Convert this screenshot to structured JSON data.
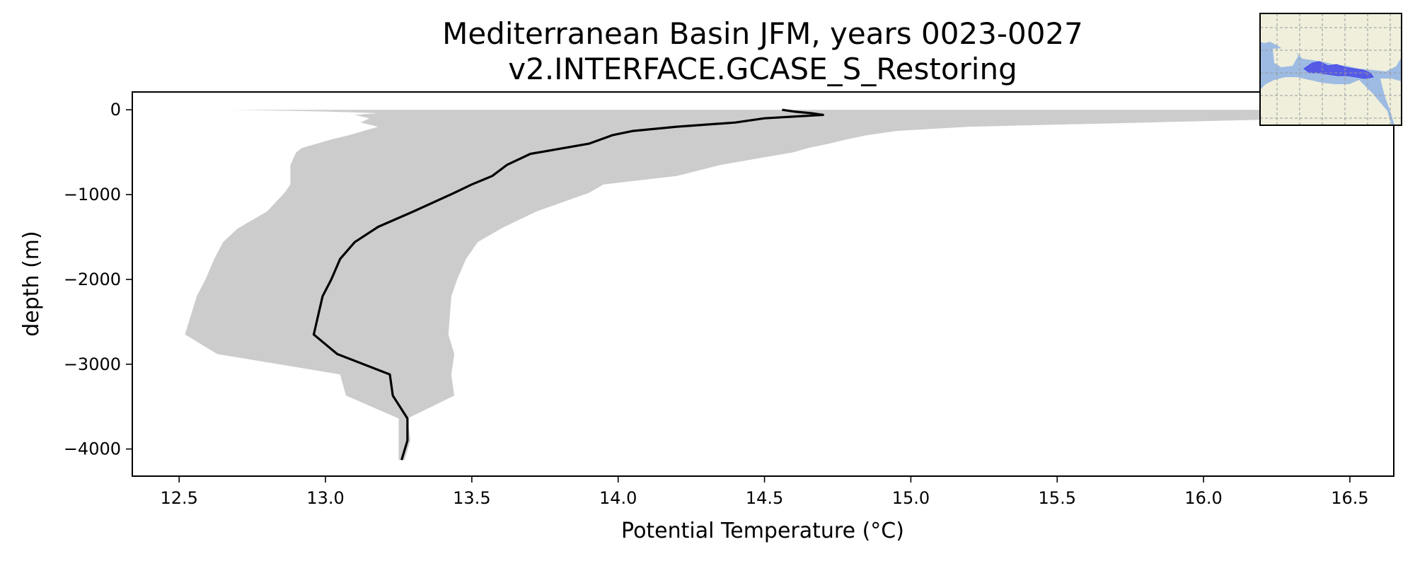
{
  "chart_data": {
    "type": "line",
    "title": "Mediterranean Basin JFM, years 0023-0027",
    "subtitle": "v2.INTERFACE.GCASE_S_Restoring",
    "xlabel": "Potential Temperature (°C)",
    "ylabel": "depth (m)",
    "xlim": [
      12.34,
      16.65
    ],
    "ylim": [
      -4320,
      210
    ],
    "xticks": [
      12.5,
      13.0,
      13.5,
      14.0,
      14.5,
      15.0,
      15.5,
      16.0,
      16.5
    ],
    "xtick_labels": [
      "12.5",
      "13.0",
      "13.5",
      "14.0",
      "14.5",
      "15.0",
      "15.5",
      "16.0",
      "16.5"
    ],
    "yticks": [
      0,
      -1000,
      -2000,
      -3000,
      -4000
    ],
    "ytick_labels": [
      "0",
      "−1000",
      "−2000",
      "−3000",
      "−4000"
    ],
    "grid": false,
    "legend": false,
    "colors": {
      "mean_line": "#000000",
      "range_band": "#cccccc",
      "map_ocean": "#9dbbe3",
      "map_land": "#efefdc",
      "map_region": "#4a4ae6",
      "map_grid": "#9a9a9a"
    },
    "series": [
      {
        "role": "mean",
        "style": "line",
        "x": [
          14.56,
          14.6,
          14.66,
          14.7,
          14.5,
          14.4,
          14.2,
          14.05,
          13.98,
          13.9,
          13.7,
          13.62,
          13.57,
          13.5,
          13.44,
          13.3,
          13.18,
          13.1,
          13.05,
          13.02,
          12.99,
          12.96,
          13.04,
          13.22,
          13.23,
          13.28,
          13.28,
          13.26
        ],
        "y": [
          0,
          -20,
          -40,
          -60,
          -100,
          -150,
          -200,
          -250,
          -300,
          -400,
          -520,
          -650,
          -780,
          -880,
          -980,
          -1200,
          -1380,
          -1560,
          -1760,
          -2000,
          -2200,
          -2650,
          -2880,
          -3120,
          -3370,
          -3640,
          -3900,
          -4130
        ]
      },
      {
        "role": "range",
        "style": "band",
        "y": [
          0,
          -20,
          -40,
          -60,
          -100,
          -150,
          -200,
          -250,
          -300,
          -350,
          -400,
          -450,
          -500,
          -650,
          -780,
          -880,
          -980,
          -1200,
          -1400,
          -1560,
          -1760,
          -2000,
          -2200,
          -2650,
          -2880,
          -3120,
          -3370,
          -3640,
          -3900,
          -4130
        ],
        "x_min": [
          12.68,
          13.0,
          13.18,
          13.1,
          13.15,
          13.12,
          13.18,
          13.13,
          13.08,
          13.02,
          12.97,
          12.92,
          12.9,
          12.88,
          12.88,
          12.88,
          12.86,
          12.8,
          12.7,
          12.65,
          12.62,
          12.59,
          12.56,
          12.52,
          12.63,
          13.05,
          13.07,
          13.25,
          13.25,
          13.25
        ],
        "x_max": [
          16.6,
          16.6,
          16.6,
          16.6,
          16.4,
          15.8,
          15.2,
          14.95,
          14.85,
          14.78,
          14.72,
          14.65,
          14.6,
          14.35,
          14.2,
          13.95,
          13.9,
          13.72,
          13.6,
          13.52,
          13.48,
          13.45,
          13.43,
          13.42,
          13.44,
          13.43,
          13.44,
          13.28,
          13.29,
          13.27
        ]
      }
    ]
  }
}
